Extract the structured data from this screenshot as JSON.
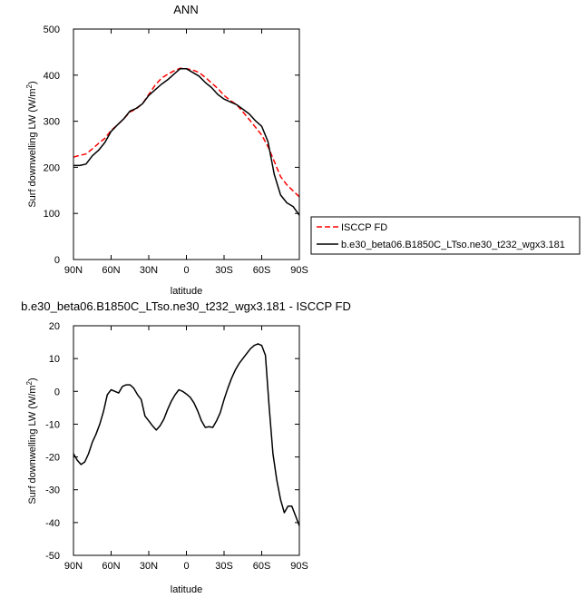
{
  "chart_data": [
    {
      "type": "line",
      "title": "ANN",
      "xlabel": "latitude",
      "ylabel_main": "Surf downwelling LW (W/m",
      "ylabel_sup": "2",
      "ylabel_close": ")",
      "xlim": [
        90,
        -90
      ],
      "ylim": [
        0,
        500
      ],
      "xticks": [
        {
          "value": 90,
          "label": "90N"
        },
        {
          "value": 60,
          "label": "60N"
        },
        {
          "value": 30,
          "label": "30N"
        },
        {
          "value": 0,
          "label": "0"
        },
        {
          "value": -30,
          "label": "30S"
        },
        {
          "value": -60,
          "label": "60S"
        },
        {
          "value": -90,
          "label": "90S"
        }
      ],
      "yticks": [
        {
          "value": 0,
          "label": "0"
        },
        {
          "value": 100,
          "label": "100"
        },
        {
          "value": 200,
          "label": "200"
        },
        {
          "value": 300,
          "label": "300"
        },
        {
          "value": 400,
          "label": "400"
        },
        {
          "value": 500,
          "label": "500"
        }
      ],
      "legend_placement": "right",
      "series": [
        {
          "name": "ISCCP FD",
          "color": "#ff0000",
          "dash": "dashed",
          "x": [
            90,
            85,
            80,
            75,
            70,
            65,
            60,
            55,
            50,
            45,
            40,
            35,
            30,
            25,
            20,
            15,
            10,
            5,
            0,
            -5,
            -10,
            -15,
            -20,
            -25,
            -30,
            -35,
            -40,
            -45,
            -50,
            -55,
            -60,
            -65,
            -70,
            -75,
            -80,
            -85,
            -90
          ],
          "y": [
            222,
            226,
            229,
            240,
            252,
            263,
            280,
            292,
            305,
            320,
            327,
            338,
            358,
            378,
            393,
            402,
            409,
            415,
            414,
            411,
            406,
            395,
            383,
            371,
            356,
            345,
            336,
            320,
            304,
            287,
            270,
            245,
            213,
            180,
            162,
            149,
            136
          ]
        },
        {
          "name": "b.e30_beta06.B1850C_LTso.ne30_t232_wgx3.181",
          "color": "#000000",
          "dash": "solid",
          "x": [
            90,
            85,
            80,
            75,
            70,
            65,
            60,
            55,
            50,
            45,
            40,
            35,
            30,
            25,
            20,
            15,
            10,
            5,
            0,
            -5,
            -10,
            -15,
            -20,
            -25,
            -30,
            -35,
            -40,
            -45,
            -50,
            -55,
            -60,
            -65,
            -70,
            -75,
            -80,
            -85,
            -90
          ],
          "y": [
            204,
            204,
            207,
            225,
            237,
            254,
            278,
            292,
            305,
            322,
            328,
            338,
            356,
            368,
            380,
            390,
            402,
            414,
            414,
            406,
            398,
            384,
            373,
            358,
            348,
            342,
            336,
            326,
            316,
            301,
            289,
            256,
            185,
            140,
            123,
            115,
            96
          ]
        }
      ]
    },
    {
      "type": "line",
      "title": "b.e30_beta06.B1850C_LTso.ne30_t232_wgx3.181 - ISCCP FD",
      "xlabel": "latitude",
      "ylabel_main": "Surf downwelling LW (W/m",
      "ylabel_sup": "2",
      "ylabel_close": ")",
      "xlim": [
        90,
        -90
      ],
      "ylim": [
        -50,
        20
      ],
      "xticks": [
        {
          "value": 90,
          "label": "90N"
        },
        {
          "value": 60,
          "label": "60N"
        },
        {
          "value": 30,
          "label": "30N"
        },
        {
          "value": 0,
          "label": "0"
        },
        {
          "value": -30,
          "label": "30S"
        },
        {
          "value": -60,
          "label": "60S"
        },
        {
          "value": -90,
          "label": "90S"
        }
      ],
      "yticks": [
        {
          "value": 20,
          "label": "20"
        },
        {
          "value": 10,
          "label": "10"
        },
        {
          "value": 0,
          "label": "0"
        },
        {
          "value": -10,
          "label": "-10"
        },
        {
          "value": -20,
          "label": "-20"
        },
        {
          "value": -30,
          "label": "-30"
        },
        {
          "value": -40,
          "label": "-40"
        },
        {
          "value": -50,
          "label": "-50"
        }
      ],
      "series": [
        {
          "color": "#000000",
          "dash": "solid",
          "x": [
            90,
            87,
            84,
            81,
            78,
            75,
            72,
            69,
            66,
            63,
            60,
            57,
            54,
            51,
            48,
            45,
            42,
            39,
            36,
            33,
            30,
            27,
            24,
            21,
            18,
            15,
            12,
            9,
            6,
            3,
            0,
            -3,
            -6,
            -9,
            -12,
            -15,
            -18,
            -21,
            -24,
            -27,
            -30,
            -33,
            -36,
            -39,
            -42,
            -45,
            -48,
            -51,
            -54,
            -57,
            -60,
            -63,
            -66,
            -69,
            -72,
            -75,
            -78,
            -81,
            -84,
            -87,
            -90
          ],
          "y": [
            -19,
            -21,
            -22.3,
            -21.5,
            -19,
            -15.5,
            -13,
            -10,
            -6,
            -1,
            0.5,
            0,
            -0.5,
            1.5,
            2,
            2,
            1,
            -1,
            -2.5,
            -7.5,
            -9,
            -10.5,
            -11.8,
            -10.5,
            -8.5,
            -5.5,
            -3,
            -1,
            0.5,
            0,
            -0.8,
            -1.8,
            -3.5,
            -6,
            -9,
            -11,
            -10.8,
            -11,
            -9,
            -6.5,
            -2.5,
            1,
            4,
            6.5,
            8.5,
            10,
            11.5,
            13,
            14,
            14.5,
            14,
            11,
            -5,
            -19,
            -27,
            -33,
            -37,
            -35,
            -35,
            -38,
            -41
          ]
        }
      ]
    }
  ]
}
